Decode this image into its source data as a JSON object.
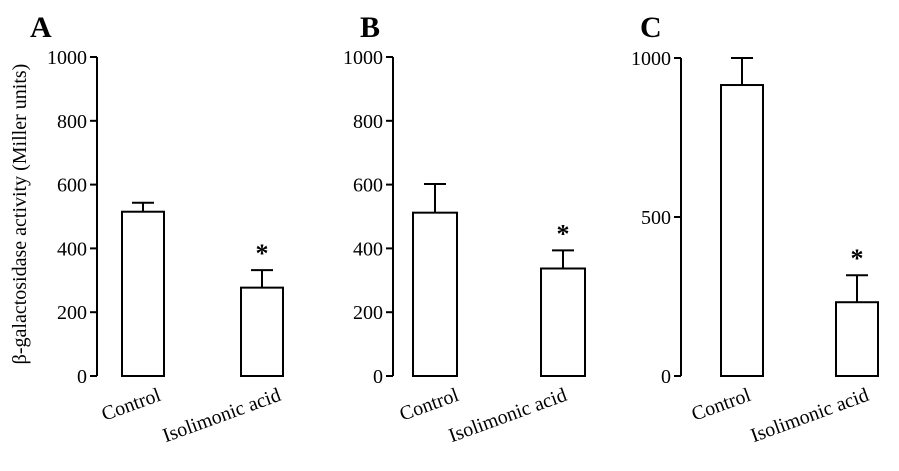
{
  "figure": {
    "ylabel": "β-galactosidase activity (Miller units)"
  },
  "chart_data": [
    {
      "type": "bar",
      "panel": "A",
      "categories": [
        "Control",
        "Isolimonic acid"
      ],
      "values": [
        515,
        277
      ],
      "errors": [
        28,
        55
      ],
      "significance": [
        "",
        "*"
      ],
      "ylim": [
        0,
        1000
      ],
      "yticks": [
        "0",
        "200",
        "400",
        "600",
        "800",
        "1000"
      ],
      "ytick_values": [
        0,
        200,
        400,
        600,
        800,
        1000
      ],
      "ylabel": "β-galactosidase activity (Miller units)",
      "xlabel": "",
      "title": ""
    },
    {
      "type": "bar",
      "panel": "B",
      "categories": [
        "Control",
        "Isolimonic acid"
      ],
      "values": [
        512,
        337
      ],
      "errors": [
        90,
        57
      ],
      "significance": [
        "",
        "*"
      ],
      "ylim": [
        0,
        1000
      ],
      "yticks": [
        "0",
        "200",
        "400",
        "600",
        "800",
        "1000"
      ],
      "ytick_values": [
        0,
        200,
        400,
        600,
        800,
        1000
      ],
      "ylabel": "",
      "xlabel": "",
      "title": ""
    },
    {
      "type": "bar",
      "panel": "C",
      "categories": [
        "Control",
        "Isolimonic acid"
      ],
      "values": [
        915,
        232
      ],
      "errors": [
        85,
        85
      ],
      "significance": [
        "",
        "*"
      ],
      "ylim": [
        0,
        1000
      ],
      "yticks": [
        "0",
        "500",
        "1000"
      ],
      "ytick_values": [
        0,
        500,
        1000
      ],
      "ylabel": "",
      "xlabel": "",
      "title": ""
    }
  ]
}
